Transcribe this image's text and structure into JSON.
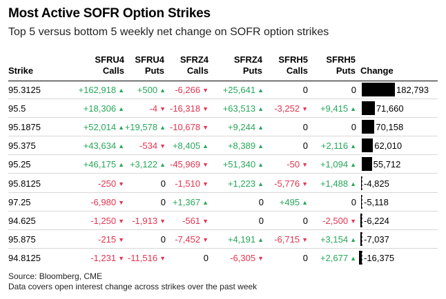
{
  "title": "Most Active SOFR Option Strikes",
  "subtitle": "Top 5 versus bottom 5 weekly net change on SOFR option strikes",
  "columns": {
    "strike": "Strike",
    "sfru4_calls": [
      "SFRU4",
      "Calls"
    ],
    "sfru4_puts": [
      "SFRU4",
      "Puts"
    ],
    "sfrz4_calls": [
      "SFRZ4",
      "Calls"
    ],
    "sfrz4_puts": [
      "SFRZ4",
      "Puts"
    ],
    "sfrh5_calls": [
      "SFRH5",
      "Calls"
    ],
    "sfrh5_puts": [
      "SFRH5",
      "Puts"
    ],
    "change": "Change"
  },
  "footer": {
    "source": "Source: Bloomberg, CME",
    "note": "Data covers open interest change across strikes over the past week"
  },
  "colors": {
    "positive": "#27a75a",
    "negative": "#e2344f",
    "bar": "#000000"
  },
  "chart_data": {
    "type": "table",
    "title": "Most Active SOFR Option Strikes",
    "subtitle": "Top 5 versus bottom 5 weekly net change on SOFR option strikes",
    "columns": [
      "Strike",
      "SFRU4 Calls",
      "SFRU4 Puts",
      "SFRZ4 Calls",
      "SFRZ4 Puts",
      "SFRH5 Calls",
      "SFRH5 Puts",
      "Change"
    ],
    "rows": [
      {
        "strike": "95.3125",
        "cells": [
          "+162,918",
          "+500",
          "-6,266",
          "+25,641",
          "0",
          "0"
        ],
        "change": 182793,
        "change_label": "182,793"
      },
      {
        "strike": "95.5",
        "cells": [
          "+18,306",
          "-4",
          "-16,318",
          "+63,513",
          "-3,252",
          "+9,415"
        ],
        "change": 71660,
        "change_label": "71,660"
      },
      {
        "strike": "95.1875",
        "cells": [
          "+52,014",
          "+19,578",
          "-10,678",
          "+9,244",
          "0",
          "0"
        ],
        "change": 70158,
        "change_label": "70,158"
      },
      {
        "strike": "95.375",
        "cells": [
          "+43,634",
          "-534",
          "+8,405",
          "+8,389",
          "0",
          "+2,116"
        ],
        "change": 62010,
        "change_label": "62,010"
      },
      {
        "strike": "95.25",
        "cells": [
          "+46,175",
          "+3,122",
          "-45,969",
          "+51,340",
          "-50",
          "+1,094"
        ],
        "change": 55712,
        "change_label": "55,712"
      },
      {
        "strike": "95.8125",
        "cells": [
          "-250",
          "0",
          "-1,510",
          "+1,223",
          "-5,776",
          "+1,488"
        ],
        "change": -4825,
        "change_label": "-4,825"
      },
      {
        "strike": "97.25",
        "cells": [
          "-6,980",
          "0",
          "+1,367",
          "0",
          "+495",
          "0"
        ],
        "change": -5118,
        "change_label": "-5,118"
      },
      {
        "strike": "94.625",
        "cells": [
          "-1,250",
          "-1,913",
          "-561",
          "0",
          "0",
          "-2,500"
        ],
        "change": -6224,
        "change_label": "-6,224"
      },
      {
        "strike": "95.875",
        "cells": [
          "-215",
          "0",
          "-7,452",
          "+4,191",
          "-6,715",
          "+3,154"
        ],
        "change": -7037,
        "change_label": "-7,037"
      },
      {
        "strike": "94.8125",
        "cells": [
          "-1,231",
          "-11,516",
          "0",
          "-6,305",
          "0",
          "+2,677"
        ],
        "change": -16375,
        "change_label": "-16,375"
      }
    ]
  }
}
